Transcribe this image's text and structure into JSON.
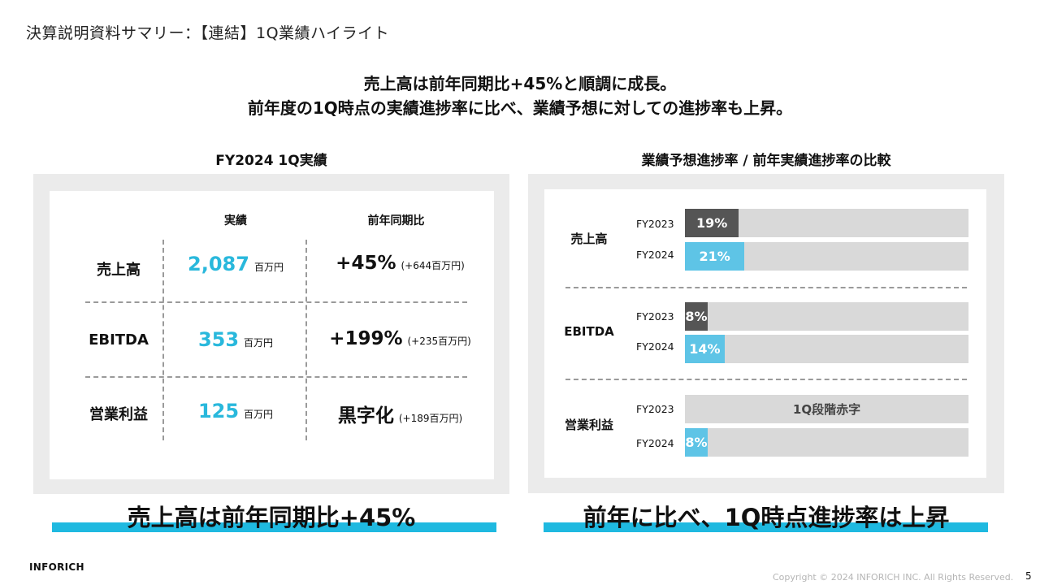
{
  "page": {
    "title": "決算説明資料サマリー：【連結】1Q業績ハイライト",
    "headline_line1": "売上高は前年同期比+45%と順調に成長。",
    "headline_line2": "前年度の1Q時点の実績進捗率に比べ、業績予想に対しての進捗率も上昇。"
  },
  "left": {
    "title": "FY2024 1Q実績",
    "col_actual": "実績",
    "col_yoy": "前年同期比",
    "rows": [
      {
        "label": "売上高",
        "value": "2,087",
        "unit": "百万円",
        "yoy": "+45%",
        "yoy_detail": "(+644百万円)"
      },
      {
        "label": "EBITDA",
        "value": "353",
        "unit": "百万円",
        "yoy": "+199%",
        "yoy_detail": "(+235百万円)"
      },
      {
        "label": "営業利益",
        "value": "125",
        "unit": "百万円",
        "yoy": "黒字化",
        "yoy_detail": "(+189百万円)"
      }
    ],
    "bottom_text": "売上高は前年同期比+45%"
  },
  "right": {
    "title": "業績予想進捗率 / 前年実績進捗率の比較",
    "bottom_text": "前年に比べ、1Q時点進捗率は上昇"
  },
  "chart_data": {
    "type": "bar",
    "orientation": "horizontal",
    "title": "業績予想進捗率 / 前年実績進捗率の比較",
    "categories": [
      "売上高",
      "EBITDA",
      "営業利益"
    ],
    "series": [
      {
        "name": "FY2023",
        "values": [
          19,
          8,
          null
        ],
        "labels": [
          "19%",
          "8%",
          "1Q段階赤字"
        ]
      },
      {
        "name": "FY2024",
        "values": [
          21,
          14,
          8
        ],
        "labels": [
          "21%",
          "14%",
          "8%"
        ]
      }
    ],
    "xlim": [
      0,
      100
    ],
    "colors": {
      "FY2023": "#555555",
      "FY2024": "#5ec4e6",
      "track": "#d9d9d9"
    }
  },
  "footer": {
    "company": "INFORICH",
    "copyright": "Copyright © 2024 INFORICH INC. All Rights Reserved.",
    "page_number": "5"
  },
  "colors": {
    "accent": "#1fb9e0",
    "value_blue": "#29b8dc",
    "panel_gray": "#ebebeb"
  }
}
